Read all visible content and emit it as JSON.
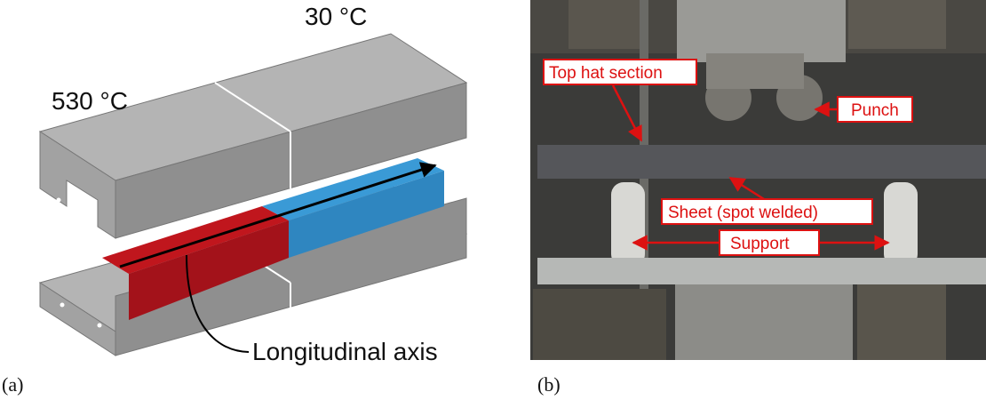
{
  "figure": {
    "panels": [
      {
        "label": "(a)",
        "annotations": [
          "530 °C",
          "30 °C",
          "Longitudinal axis"
        ]
      },
      {
        "label": "(b)",
        "annotations": [
          "Top hat section",
          "Punch",
          "Sheet (spot welded)",
          "Support"
        ]
      }
    ]
  }
}
